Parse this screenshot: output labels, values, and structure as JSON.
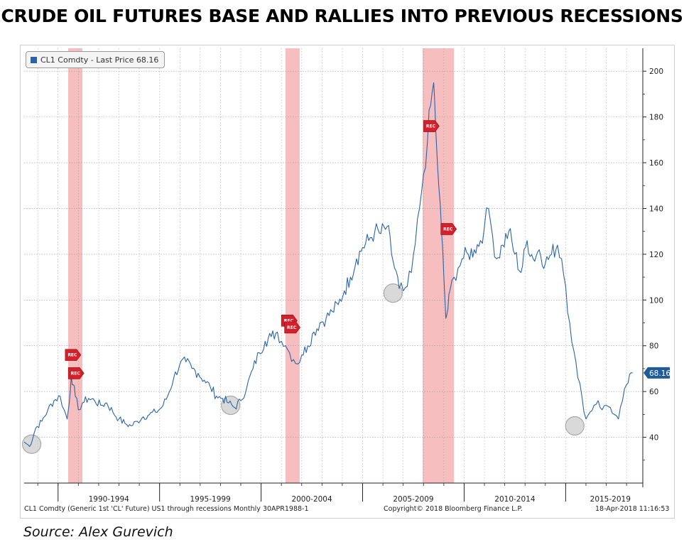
{
  "headline": "CRUDE OIL FUTURES BASE AND RALLIES INTO PREVIOUS RECESSIONS",
  "legend": {
    "label": "CL1 Comdty - Last Price 68.16"
  },
  "footer": {
    "left": "CL1 Comdty (Generic 1st 'CL' Future) US1 through recessions  Monthly 30APR1988-1",
    "center": "Copyright© 2018 Bloomberg Finance L.P.",
    "right": "18-Apr-2018 11:16:53"
  },
  "source": "Source: Alex Gurevich",
  "colors": {
    "line": "#2a64a8",
    "recession_band": "#f4b3b3",
    "rec_marker": "#d4202a",
    "circle": "#c9c9c9",
    "grid": "#9a9a9a"
  },
  "chart_data": {
    "type": "line",
    "title": "CRUDE OIL FUTURES BASE AND RALLIES INTO PREVIOUS RECESSIONS",
    "series_name": "CL1 Comdty",
    "last_price": 68.16,
    "last_price_label": "68.16",
    "ylim": [
      20,
      210
    ],
    "yticks": [
      40,
      60,
      80,
      100,
      120,
      140,
      160,
      180,
      200
    ],
    "xlim": [
      1988.33,
      2018.8
    ],
    "x_period_labels": [
      {
        "label": "1990-1994",
        "x": 1992.5
      },
      {
        "label": "1995-1999",
        "x": 1997.5
      },
      {
        "label": "2000-2004",
        "x": 2002.5
      },
      {
        "label": "2005-2009",
        "x": 2007.5
      },
      {
        "label": "2010-2014",
        "x": 2012.5
      },
      {
        "label": "2015-2019",
        "x": 2017.2
      }
    ],
    "x_dividers": [
      1990,
      1995,
      2000,
      2005,
      2010,
      2015
    ],
    "grid": true,
    "legend_position": "top-left",
    "recessions": [
      {
        "start": 1990.5,
        "end": 1991.2
      },
      {
        "start": 2001.2,
        "end": 2001.9
      },
      {
        "start": 2007.95,
        "end": 2009.5
      }
    ],
    "rec_markers": [
      {
        "x": 1990.6,
        "y": 76,
        "label": "REC"
      },
      {
        "x": 1990.75,
        "y": 68,
        "label": "REC"
      },
      {
        "x": 2001.25,
        "y": 91,
        "label": "REC"
      },
      {
        "x": 2001.4,
        "y": 88,
        "label": "REC"
      },
      {
        "x": 2008.25,
        "y": 176,
        "label": "REC"
      },
      {
        "x": 2009.1,
        "y": 131,
        "label": "REC"
      }
    ],
    "base_circles": [
      {
        "x": 1988.7,
        "y": 37
      },
      {
        "x": 1998.5,
        "y": 54
      },
      {
        "x": 2006.5,
        "y": 103
      },
      {
        "x": 2015.45,
        "y": 45
      }
    ],
    "x": [
      1988.33,
      1988.6,
      1988.9,
      1989.2,
      1989.5,
      1989.8,
      1990.1,
      1990.3,
      1990.45,
      1990.55,
      1990.65,
      1990.75,
      1990.85,
      1991.0,
      1991.2,
      1991.5,
      1991.8,
      1992.1,
      1992.4,
      1992.7,
      1993.0,
      1993.3,
      1993.6,
      1993.9,
      1994.2,
      1994.5,
      1994.8,
      1995.1,
      1995.4,
      1995.7,
      1996.0,
      1996.3,
      1996.6,
      1996.9,
      1997.2,
      1997.5,
      1997.8,
      1998.1,
      1998.4,
      1998.7,
      1999.0,
      1999.3,
      1999.6,
      1999.9,
      2000.2,
      2000.5,
      2000.8,
      2001.0,
      2001.2,
      2001.4,
      2001.6,
      2001.8,
      2002.0,
      2002.3,
      2002.6,
      2002.9,
      2003.2,
      2003.5,
      2003.8,
      2004.1,
      2004.4,
      2004.7,
      2005.0,
      2005.3,
      2005.6,
      2005.9,
      2006.2,
      2006.5,
      2006.8,
      2007.0,
      2007.2,
      2007.4,
      2007.6,
      2007.8,
      2008.0,
      2008.2,
      2008.35,
      2008.5,
      2008.6,
      2008.75,
      2008.9,
      2009.0,
      2009.1,
      2009.2,
      2009.3,
      2009.5,
      2009.7,
      2009.9,
      2010.2,
      2010.5,
      2010.8,
      2011.0,
      2011.2,
      2011.4,
      2011.6,
      2011.9,
      2012.2,
      2012.5,
      2012.8,
      2013.1,
      2013.4,
      2013.7,
      2014.0,
      2014.3,
      2014.6,
      2014.8,
      2015.0,
      2015.2,
      2015.4,
      2015.6,
      2015.8,
      2016.0,
      2016.2,
      2016.4,
      2016.6,
      2016.8,
      2017.0,
      2017.2,
      2017.4,
      2017.6,
      2017.8,
      2018.0,
      2018.3
    ],
    "values": [
      38,
      36,
      44,
      47,
      52,
      56,
      58,
      52,
      48,
      55,
      67,
      63,
      58,
      52,
      55,
      57,
      56,
      54,
      55,
      51,
      48,
      46,
      45,
      47,
      49,
      50,
      51,
      53,
      58,
      66,
      72,
      73,
      70,
      68,
      65,
      62,
      58,
      57,
      55,
      53,
      56,
      62,
      70,
      77,
      82,
      84,
      86,
      82,
      80,
      77,
      74,
      72,
      76,
      80,
      86,
      90,
      92,
      95,
      98,
      104,
      110,
      118,
      123,
      126,
      130,
      129,
      132,
      117,
      105,
      104,
      106,
      112,
      125,
      140,
      155,
      170,
      185,
      195,
      175,
      150,
      128,
      110,
      92,
      96,
      104,
      110,
      114,
      118,
      120,
      122,
      126,
      132,
      140,
      128,
      118,
      124,
      130,
      120,
      112,
      126,
      118,
      122,
      116,
      120,
      124,
      118,
      106,
      90,
      78,
      66,
      58,
      48,
      51,
      54,
      56,
      52,
      54,
      53,
      50,
      48,
      56,
      63,
      68.16
    ]
  }
}
